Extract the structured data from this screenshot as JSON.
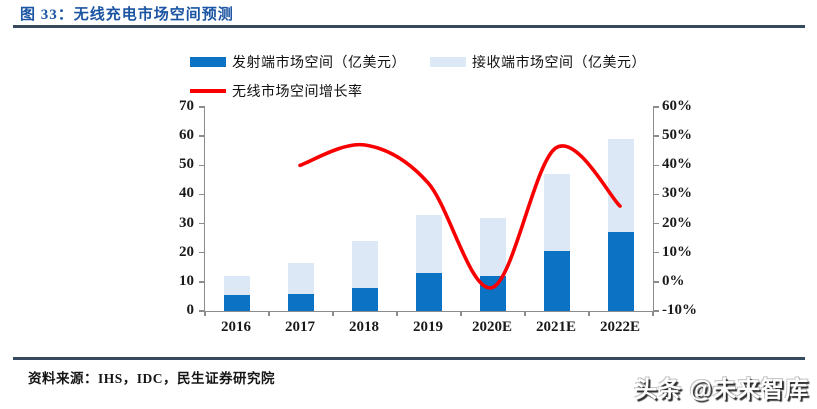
{
  "figure": {
    "title": "图 33：无线充电市场空间预测"
  },
  "legend": {
    "items": [
      {
        "label": "发射端市场空间（亿美元）",
        "type": "bar",
        "color": "#0b72c4"
      },
      {
        "label": "接收端市场空间（亿美元）",
        "type": "bar",
        "color": "#dce8f5"
      },
      {
        "label": "无线市场空间增长率",
        "type": "line",
        "color": "#f80000"
      }
    ]
  },
  "chart_data": {
    "type": "bar",
    "subtype": "stacked-bars-with-line",
    "categories": [
      "2016",
      "2017",
      "2018",
      "2019",
      "2020E",
      "2021E",
      "2022E"
    ],
    "series": [
      {
        "name": "发射端市场空间（亿美元）",
        "type": "bar",
        "axis": "left",
        "values": [
          5.5,
          6,
          8,
          13,
          12,
          20.5,
          27
        ],
        "color": "#0b72c4"
      },
      {
        "name": "接收端市场空间（亿美元）",
        "type": "bar",
        "axis": "left",
        "stacked_on": 0,
        "values": [
          6.5,
          10.5,
          16,
          20,
          20,
          26.5,
          32
        ],
        "color": "#dce8f5"
      },
      {
        "name": "无线市场空间增长率",
        "type": "line",
        "axis": "right",
        "values": [
          null,
          40,
          47,
          34,
          -2,
          46,
          26
        ],
        "color": "#f80000"
      }
    ],
    "totals_bars": [
      12,
      16.5,
      24,
      33,
      32,
      47,
      59
    ],
    "left_axis": {
      "min": 0,
      "max": 70,
      "step": 10,
      "ticks": [
        "0",
        "10",
        "20",
        "30",
        "40",
        "50",
        "60",
        "70"
      ]
    },
    "right_axis": {
      "min": -10,
      "max": 60,
      "step": 10,
      "ticks": [
        "-10%",
        "0%",
        "10%",
        "20%",
        "30%",
        "40%",
        "50%",
        "60%"
      ]
    },
    "grid": false,
    "legend_position": "top-center"
  },
  "source": {
    "text": "资料来源：IHS，IDC，民生证券研究院"
  },
  "watermark": {
    "text": "头条 @未来智库"
  }
}
